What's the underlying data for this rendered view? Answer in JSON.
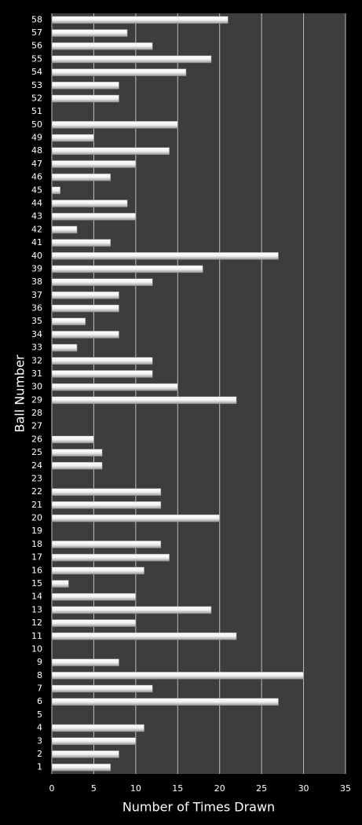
{
  "chart_data": {
    "type": "bar",
    "orientation": "horizontal",
    "x_label": "Number of Times Drawn",
    "y_label": "Ball Number",
    "categories": [
      "1",
      "2",
      "3",
      "4",
      "5",
      "6",
      "7",
      "8",
      "9",
      "10",
      "11",
      "12",
      "13",
      "14",
      "15",
      "16",
      "17",
      "18",
      "19",
      "20",
      "21",
      "22",
      "23",
      "24",
      "25",
      "26",
      "27",
      "28",
      "29",
      "30",
      "31",
      "32",
      "33",
      "34",
      "35",
      "36",
      "37",
      "38",
      "39",
      "40",
      "41",
      "42",
      "43",
      "44",
      "45",
      "46",
      "47",
      "48",
      "49",
      "50",
      "51",
      "52",
      "53",
      "54",
      "55",
      "56",
      "57",
      "58"
    ],
    "values": [
      7,
      8,
      10,
      11,
      0,
      27,
      12,
      30,
      8,
      0,
      22,
      10,
      19,
      10,
      2,
      11,
      14,
      13,
      0,
      20,
      13,
      13,
      0,
      6,
      6,
      5,
      0,
      0,
      22,
      15,
      12,
      12,
      3,
      8,
      4,
      8,
      8,
      12,
      18,
      27,
      7,
      3,
      10,
      9,
      1,
      7,
      10,
      14,
      5,
      15,
      0,
      8,
      8,
      16,
      19,
      12,
      9,
      21
    ],
    "color": "#ffffff",
    "xlim": [
      0,
      35
    ],
    "xticks": [
      0,
      5,
      10,
      15,
      20,
      25,
      30,
      35
    ],
    "grid": true
  }
}
